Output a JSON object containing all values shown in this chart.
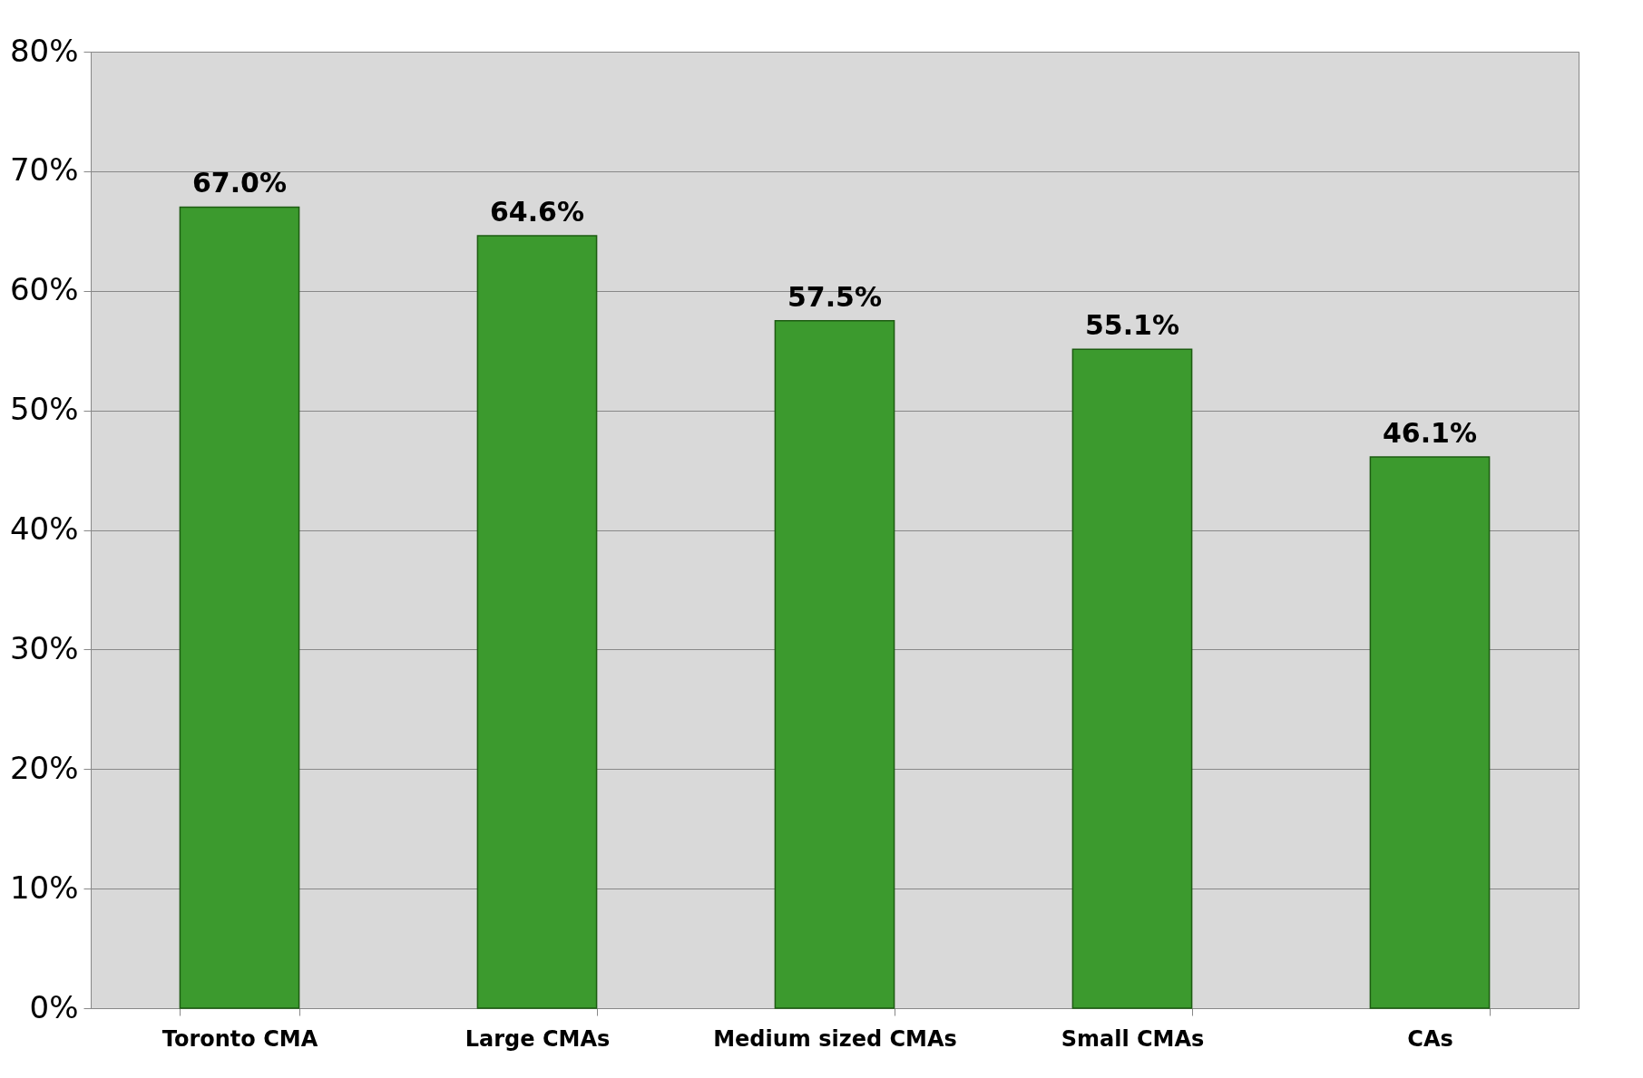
{
  "chart_data": {
    "type": "bar",
    "categories": [
      "Toronto CMA",
      "Large CMAs",
      "Medium sized CMAs",
      "Small CMAs",
      "CAs"
    ],
    "values": [
      67.0,
      64.6,
      57.5,
      55.1,
      46.1
    ],
    "value_labels": [
      "67.0%",
      "64.6%",
      "57.5%",
      "55.1%",
      "46.1%"
    ],
    "color": "#3c9a2e",
    "ylim": [
      0,
      80
    ],
    "yticks": [
      {
        "value": 0,
        "label": "0%"
      },
      {
        "value": 10,
        "label": "10%"
      },
      {
        "value": 20,
        "label": "20%"
      },
      {
        "value": 30,
        "label": "30%"
      },
      {
        "value": 40,
        "label": "40%"
      },
      {
        "value": 50,
        "label": "50%"
      },
      {
        "value": 60,
        "label": "60%"
      },
      {
        "value": 70,
        "label": "70%"
      },
      {
        "value": 80,
        "label": "80%"
      }
    ],
    "grid": "y"
  }
}
